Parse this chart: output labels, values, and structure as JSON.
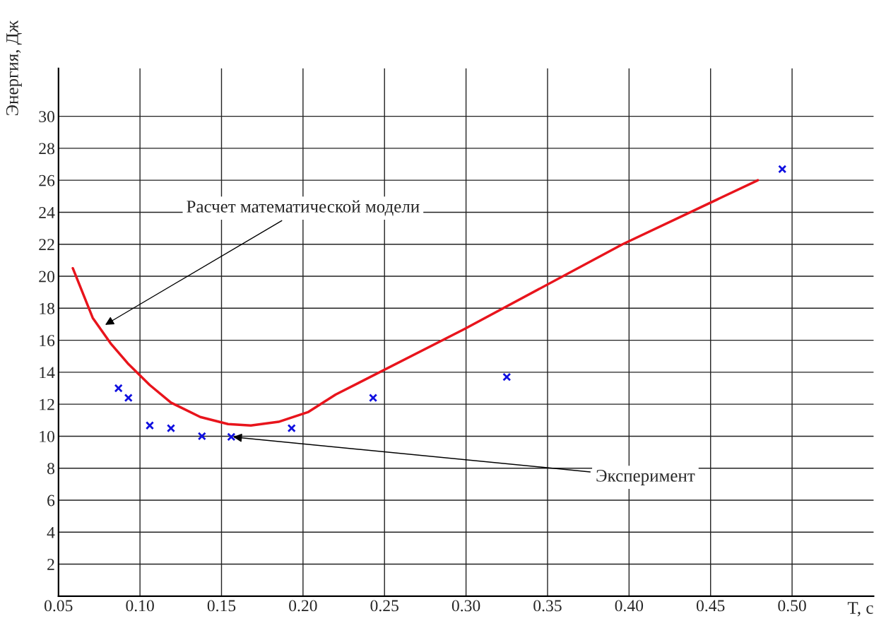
{
  "chart_data": {
    "type": "line",
    "xlabel": "T, с",
    "ylabel": "Энергия, Дж",
    "series": [
      {
        "color": "#e8141c",
        "line_style": "solid",
        "marker": "none",
        "x": [
          0.0588,
          0.071,
          0.082,
          0.093,
          0.106,
          0.119,
          0.137,
          0.154,
          0.168,
          0.185,
          0.203,
          0.22,
          0.299,
          0.396,
          0.479
        ],
        "values": [
          20.5,
          17.4,
          15.8,
          14.5,
          13.2,
          12.1,
          11.2,
          10.76,
          10.67,
          10.9,
          11.5,
          12.6,
          16.7,
          22.0,
          26.0
        ]
      },
      {
        "type": "scatter",
        "color": "#1010e0",
        "marker": "cross",
        "x": [
          0.0868,
          0.0929,
          0.106,
          0.119,
          0.138,
          0.156,
          0.193,
          0.243,
          0.325,
          0.494
        ],
        "values": [
          13.0,
          12.4,
          10.67,
          10.5,
          10.0,
          9.96,
          10.5,
          12.4,
          13.7,
          26.7
        ]
      }
    ],
    "annotations": [
      {
        "text": "Расчет математической модели",
        "x": 0.0776,
        "y": 16.9
      },
      {
        "text": "Эксперимент",
        "x": 0.156,
        "y": 9.96
      }
    ],
    "xlim": [
      0.05,
      0.55
    ],
    "ylim": [
      0,
      33
    ],
    "xticks": [
      {
        "value": 0.05,
        "label": "0.05"
      },
      {
        "value": 0.1,
        "label": "0.10"
      },
      {
        "value": 0.15,
        "label": "0.15"
      },
      {
        "value": 0.2,
        "label": "0.20"
      },
      {
        "value": 0.25,
        "label": "0.25"
      },
      {
        "value": 0.3,
        "label": "0.30"
      },
      {
        "value": 0.35,
        "label": "0.35"
      },
      {
        "value": 0.4,
        "label": "0.40"
      },
      {
        "value": 0.45,
        "label": "0.45"
      },
      {
        "value": 0.5,
        "label": "0.50"
      }
    ],
    "yticks": [
      2,
      4,
      6,
      8,
      10,
      12,
      14,
      16,
      18,
      20,
      22,
      24,
      26,
      28,
      30
    ],
    "grid": true,
    "legend": false
  }
}
